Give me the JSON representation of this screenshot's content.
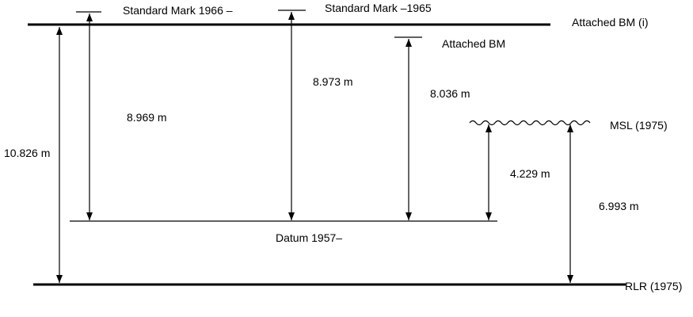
{
  "labels": {
    "standard_mark_1966": "Standard Mark 1966 –",
    "standard_mark_1965": "Standard Mark  –1965",
    "attached_bm_i": "Attached BM (i)",
    "attached_bm": "Attached BM",
    "msl_1975": "MSL (1975)",
    "datum_1957": "Datum 1957–",
    "rlr_1975": "RLR (1975)"
  },
  "measurements": {
    "rlr_to_attached_bm_i": "10.826 m",
    "datum_to_standard_mark_1966": "8.969 m",
    "datum_to_standard_mark_1965": "8.973 m",
    "datum_to_attached_bm": "8.036 m",
    "datum_to_msl": "4.229 m",
    "rlr_to_msl": "6.993 m"
  },
  "colors": {
    "line": "#000000",
    "background": "#ffffff"
  }
}
